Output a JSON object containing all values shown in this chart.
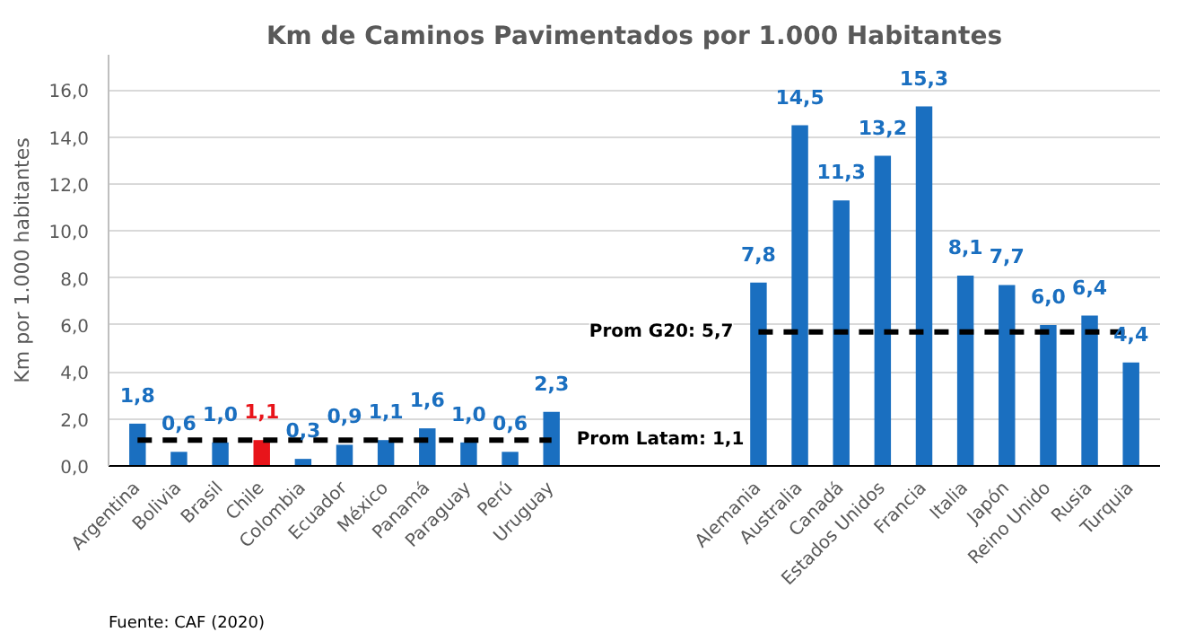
{
  "chart_data": {
    "type": "bar",
    "title": "Km de Caminos Pavimentados por 1.000 Habitantes",
    "ylabel": "Km por 1.000 habitantes",
    "categories": [
      "Argentina",
      "Bolivia",
      "Brasil",
      "Chile",
      "Colombia",
      "Ecuador",
      "México",
      "Panamá",
      "Paraguay",
      "Perú",
      "Uruguay",
      null,
      null,
      null,
      null,
      "Alemania",
      "Australia",
      "Canadá",
      "Estados Unidos",
      "Francia",
      "Italia",
      "Japón",
      "Reino Unido",
      "Rusia",
      "Turquia"
    ],
    "series": [
      {
        "colors": [
          "#1a6fc0",
          "#1a6fc0",
          "#1a6fc0",
          "#e8141a",
          "#1a6fc0",
          "#1a6fc0",
          "#1a6fc0",
          "#1a6fc0",
          "#1a6fc0",
          "#1a6fc0",
          "#1a6fc0",
          "#1a6fc0",
          "#1a6fc0",
          "#1a6fc0",
          "#1a6fc0",
          "#1a6fc0",
          "#1a6fc0",
          "#1a6fc0",
          "#1a6fc0",
          "#1a6fc0",
          "#1a6fc0",
          "#1a6fc0",
          "#1a6fc0",
          "#1a6fc0",
          "#1a6fc0"
        ],
        "values": [
          1.8,
          0.6,
          1.0,
          1.1,
          0.3,
          0.9,
          1.1,
          1.6,
          1.0,
          0.6,
          2.3,
          null,
          null,
          null,
          null,
          7.8,
          14.5,
          11.3,
          13.2,
          15.3,
          8.1,
          7.7,
          6.0,
          6.4,
          4.4
        ],
        "value_labels": [
          "1,8",
          "0,6",
          "1,0",
          "1,1",
          "0,3",
          "0,9",
          "1,1",
          "1,6",
          "1,0",
          "0,6",
          "2,3",
          null,
          null,
          null,
          null,
          "7,8",
          "14,5",
          "11,3",
          "13,2",
          "15,3",
          "8,1",
          "7,7",
          "6,0",
          "6,4",
          "4,4"
        ]
      },
      {
        "type": "line",
        "color": "#000000",
        "line_style": "dashed",
        "marker": "none",
        "values": [
          1.1,
          1.1,
          1.1,
          1.1,
          1.1,
          1.1,
          1.1,
          1.1,
          1.1,
          1.1,
          1.1,
          null,
          null,
          null,
          null,
          null,
          null,
          null,
          null,
          null,
          null,
          null,
          null,
          null,
          null
        ]
      },
      {
        "type": "line",
        "color": "#000000",
        "line_style": "dashed",
        "marker": "none",
        "values": [
          null,
          null,
          null,
          null,
          null,
          null,
          null,
          null,
          null,
          null,
          null,
          null,
          null,
          null,
          null,
          5.7,
          5.7,
          5.7,
          5.7,
          5.7,
          5.7,
          5.7,
          5.7,
          5.7,
          5.7
        ]
      }
    ],
    "ylim": [
      0,
      17.5
    ],
    "yticks": [
      {
        "value": 0,
        "label": "0,0"
      },
      {
        "value": 2,
        "label": "2,0"
      },
      {
        "value": 4,
        "label": "4,0"
      },
      {
        "value": 6,
        "label": "6,0"
      },
      {
        "value": 8,
        "label": "8,0"
      },
      {
        "value": 10,
        "label": "10,0"
      },
      {
        "value": 12,
        "label": "12,0"
      },
      {
        "value": 14,
        "label": "14,0"
      },
      {
        "value": 16,
        "label": "16,0"
      }
    ],
    "grid": "y",
    "annotations": [
      {
        "text": "Prom Latam: 1,1",
        "x": "Uruguay",
        "y": 1.1
      },
      {
        "text": "Prom G20: 5,7",
        "x": "Alemania",
        "y": 5.7
      },
      "Fuente: CAF (2020)"
    ]
  }
}
